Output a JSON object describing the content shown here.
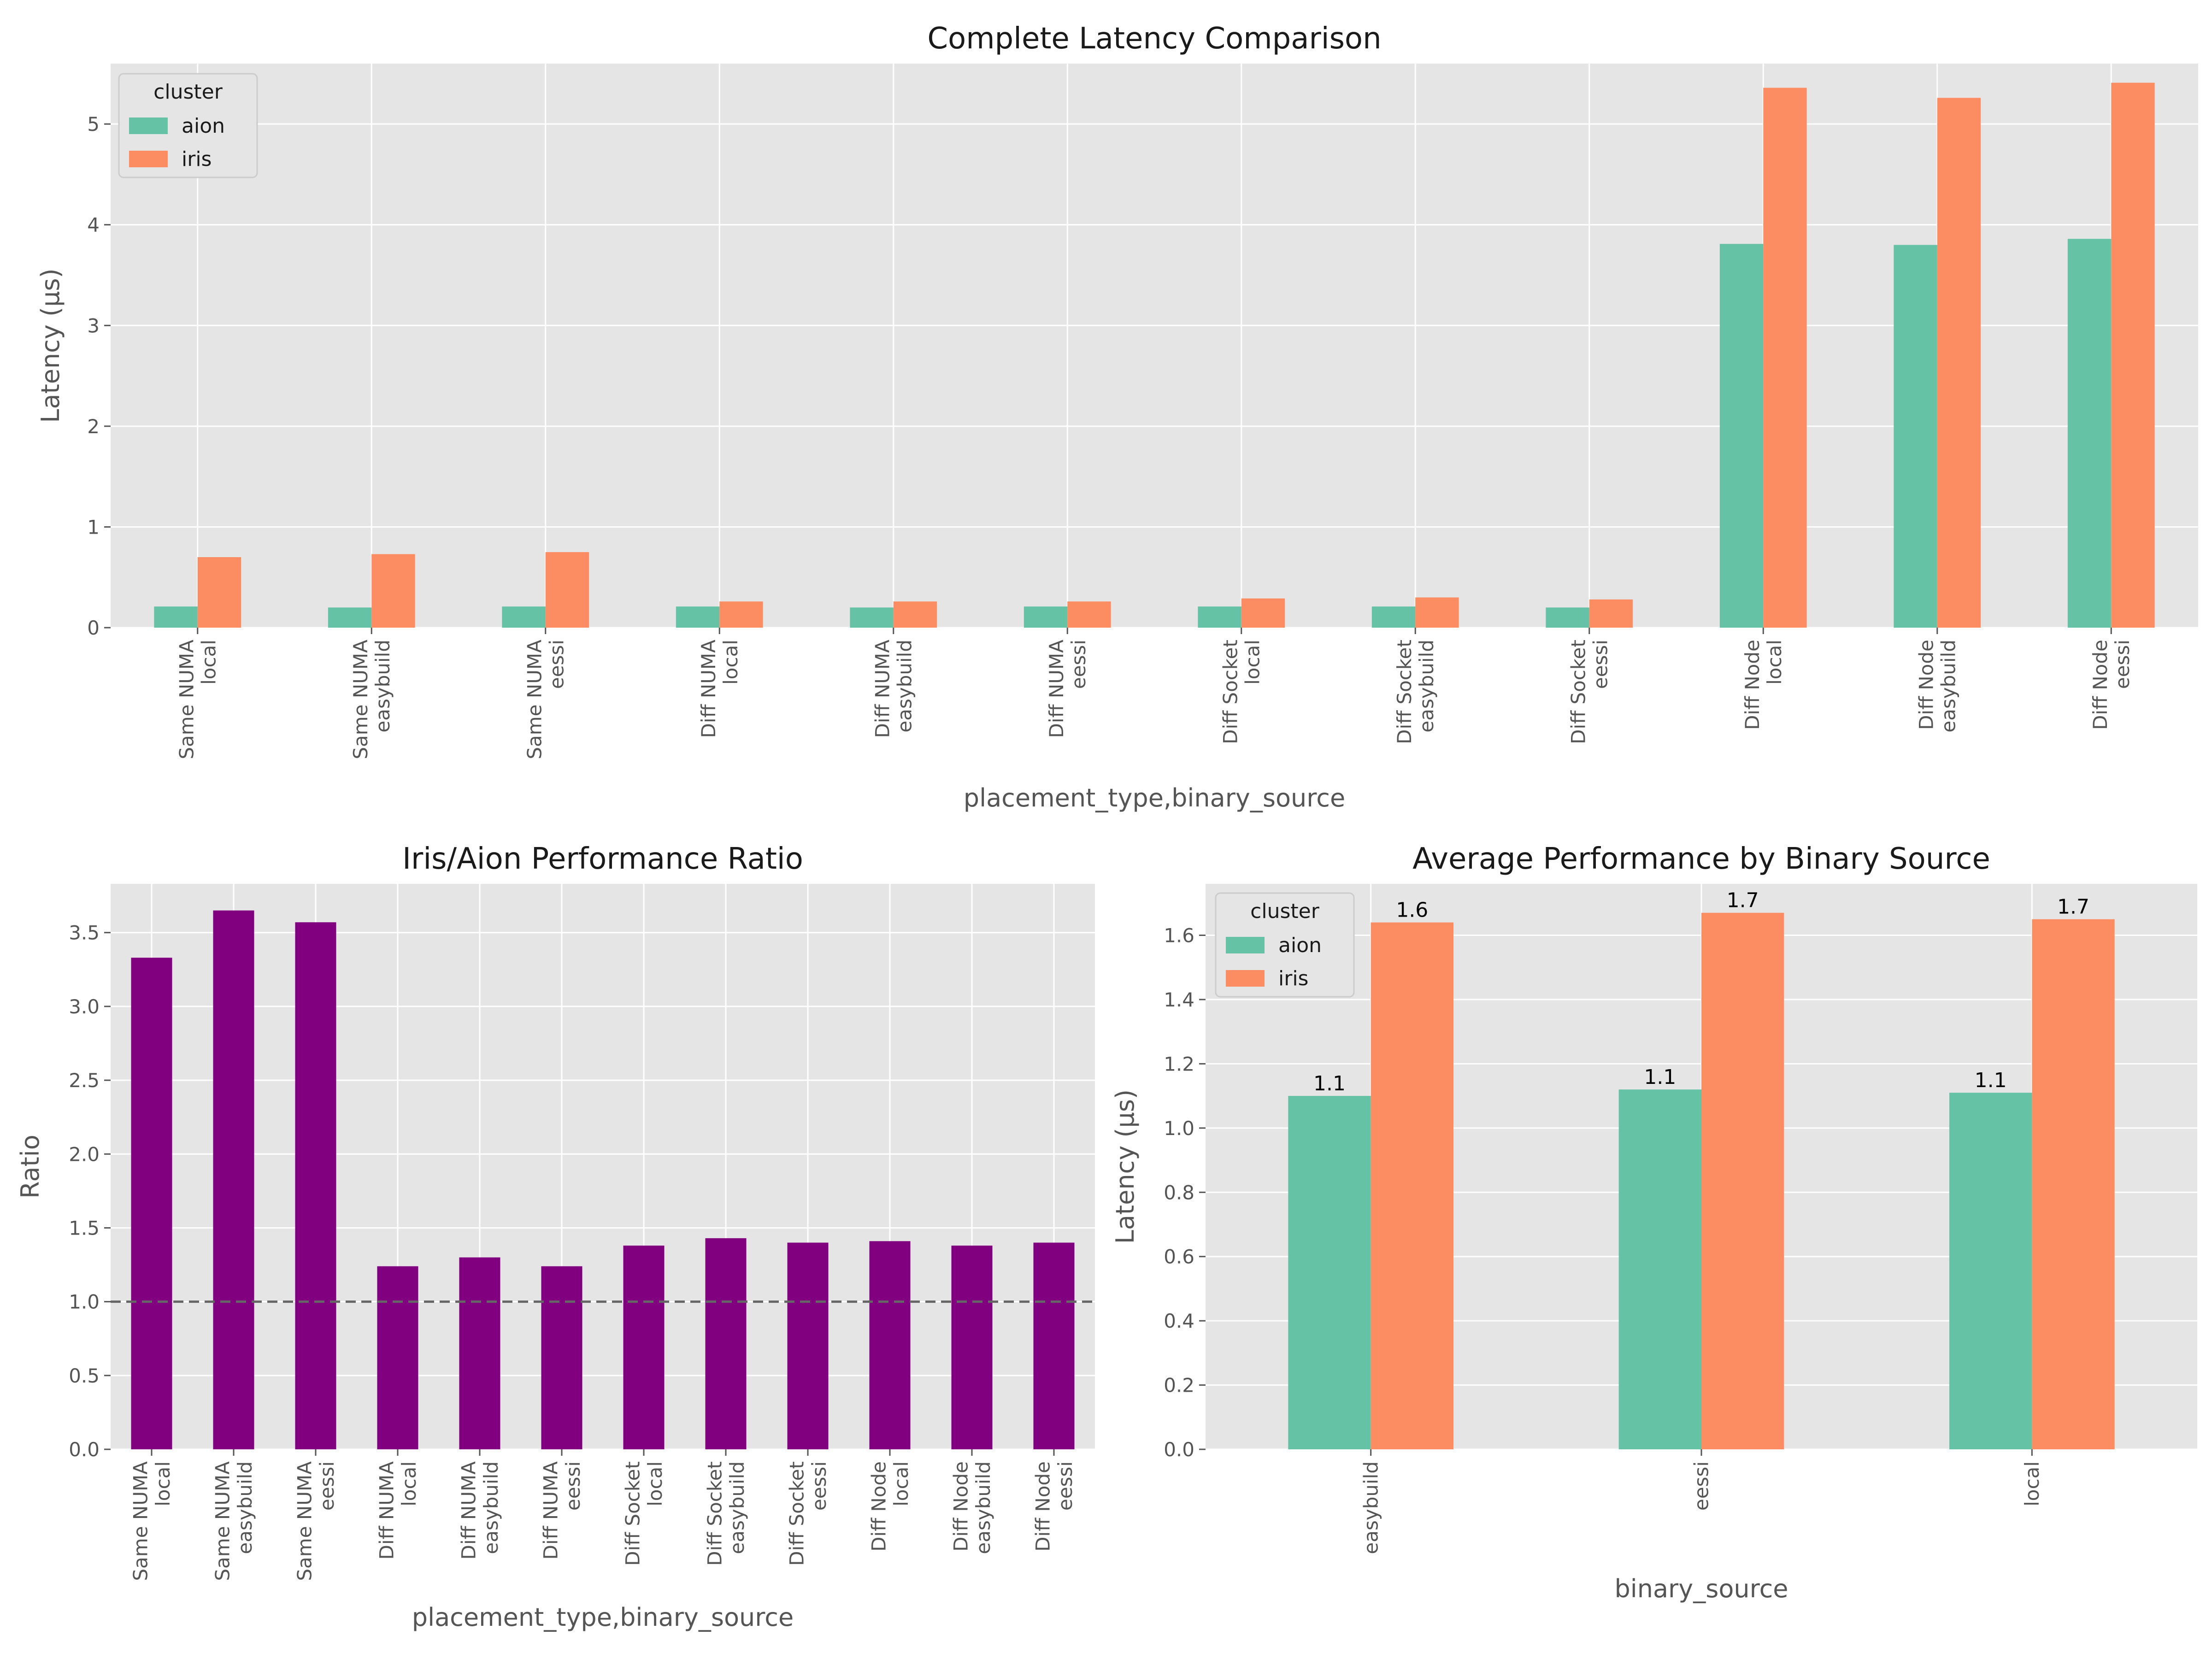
{
  "colors": {
    "panel_bg": "#e5e5e5",
    "grid": "#ffffff",
    "text": "#555555",
    "title": "#1a1a1a",
    "aion": "#66c2a5",
    "iris": "#fc8d62",
    "ratio": "#800080",
    "ref_line": "#666666"
  },
  "chart_data": [
    {
      "id": "complete",
      "type": "bar",
      "title": "Complete Latency Comparison",
      "xlabel": "placement_type,binary_source",
      "ylabel": "Latency (μs)",
      "ylim": [
        0,
        5.6
      ],
      "yticks": [
        0,
        1,
        2,
        3,
        4,
        5
      ],
      "ytick_labels": [
        "0",
        "1",
        "2",
        "3",
        "4",
        "5"
      ],
      "grid": true,
      "legend": {
        "title": "cluster",
        "position": "top-left"
      },
      "categories": [
        [
          "Same NUMA",
          "local"
        ],
        [
          "Same NUMA",
          "easybuild"
        ],
        [
          "Same NUMA",
          "eessi"
        ],
        [
          "Diff NUMA",
          "local"
        ],
        [
          "Diff NUMA",
          "easybuild"
        ],
        [
          "Diff NUMA",
          "eessi"
        ],
        [
          "Diff Socket",
          "local"
        ],
        [
          "Diff Socket",
          "easybuild"
        ],
        [
          "Diff Socket",
          "eessi"
        ],
        [
          "Diff Node",
          "local"
        ],
        [
          "Diff Node",
          "easybuild"
        ],
        [
          "Diff Node",
          "eessi"
        ]
      ],
      "series": [
        {
          "name": "aion",
          "color": "#66c2a5",
          "values": [
            0.21,
            0.2,
            0.21,
            0.21,
            0.2,
            0.21,
            0.21,
            0.21,
            0.2,
            3.81,
            3.8,
            3.86
          ]
        },
        {
          "name": "iris",
          "color": "#fc8d62",
          "values": [
            0.7,
            0.73,
            0.75,
            0.26,
            0.26,
            0.26,
            0.29,
            0.3,
            0.28,
            5.36,
            5.26,
            5.41
          ]
        }
      ]
    },
    {
      "id": "ratio",
      "type": "bar",
      "title": "Iris/Aion Performance Ratio",
      "xlabel": "placement_type,binary_source",
      "ylabel": "Ratio",
      "ylim": [
        0,
        3.83
      ],
      "yticks": [
        0,
        0.5,
        1,
        1.5,
        2,
        2.5,
        3,
        3.5
      ],
      "ytick_labels": [
        "0.0",
        "0.5",
        "1.0",
        "1.5",
        "2.0",
        "2.5",
        "3.0",
        "3.5"
      ],
      "grid": true,
      "reference_line": 1.0,
      "categories": [
        [
          "Same NUMA",
          "local"
        ],
        [
          "Same NUMA",
          "easybuild"
        ],
        [
          "Same NUMA",
          "eessi"
        ],
        [
          "Diff NUMA",
          "local"
        ],
        [
          "Diff NUMA",
          "easybuild"
        ],
        [
          "Diff NUMA",
          "eessi"
        ],
        [
          "Diff Socket",
          "local"
        ],
        [
          "Diff Socket",
          "easybuild"
        ],
        [
          "Diff Socket",
          "eessi"
        ],
        [
          "Diff Node",
          "local"
        ],
        [
          "Diff Node",
          "easybuild"
        ],
        [
          "Diff Node",
          "eessi"
        ]
      ],
      "series": [
        {
          "color": "#800080",
          "values": [
            3.33,
            3.65,
            3.57,
            1.24,
            1.3,
            1.24,
            1.38,
            1.43,
            1.4,
            1.41,
            1.38,
            1.4
          ]
        }
      ]
    },
    {
      "id": "average",
      "type": "bar",
      "title": "Average Performance by Binary Source",
      "xlabel": "binary_source",
      "ylabel": "Latency (μs)",
      "ylim": [
        0,
        1.76
      ],
      "yticks": [
        0,
        0.2,
        0.4,
        0.6,
        0.8,
        1.0,
        1.2,
        1.4,
        1.6
      ],
      "ytick_labels": [
        "0.0",
        "0.2",
        "0.4",
        "0.6",
        "0.8",
        "1.0",
        "1.2",
        "1.4",
        "1.6"
      ],
      "grid": true,
      "legend": {
        "title": "cluster",
        "position": "top-left"
      },
      "categories": [
        [
          "easybuild"
        ],
        [
          "eessi"
        ],
        [
          "local"
        ]
      ],
      "series": [
        {
          "name": "aion",
          "color": "#66c2a5",
          "values": [
            1.1,
            1.12,
            1.11
          ],
          "data_labels": [
            "1.1",
            "1.1",
            "1.1"
          ]
        },
        {
          "name": "iris",
          "color": "#fc8d62",
          "values": [
            1.64,
            1.67,
            1.65
          ],
          "data_labels": [
            "1.6",
            "1.7",
            "1.7"
          ]
        }
      ]
    }
  ]
}
